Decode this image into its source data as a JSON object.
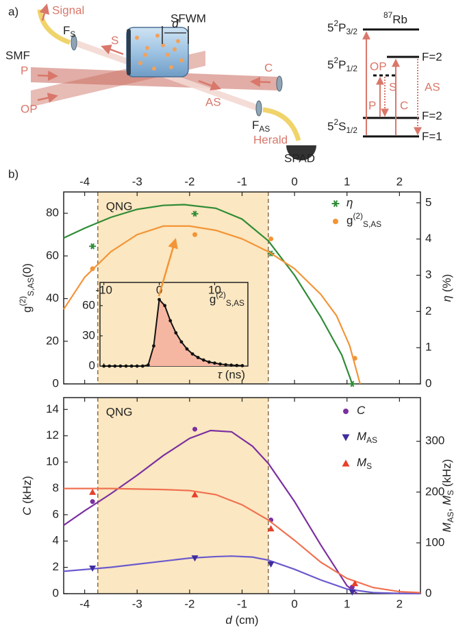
{
  "diagram": {
    "panel_a": "a)",
    "panel_b": "b)",
    "title": "SFWM",
    "signal": "Signal",
    "smf": "SMF",
    "f_s": [
      {
        "t": "F"
      },
      {
        "t": "S",
        "s": "sub"
      }
    ],
    "beam_s": "S",
    "beam_p": "P",
    "beam_c": "C",
    "beam_op": "OP",
    "beam_as": "AS",
    "cell_d": [
      {
        "t": "d",
        "i": true
      }
    ],
    "f_as": [
      {
        "t": "F"
      },
      {
        "t": "AS",
        "s": "sub"
      }
    ],
    "herald": "Herald",
    "spad": "SPAD",
    "atom": [
      {
        "t": "87",
        "s": "sup"
      },
      {
        "t": "Rb"
      }
    ],
    "level_p32": [
      {
        "t": "5"
      },
      {
        "t": "2",
        "s": "sup"
      },
      {
        "t": "P"
      },
      {
        "t": "3/2",
        "s": "sub"
      }
    ],
    "level_p12": [
      {
        "t": "5"
      },
      {
        "t": "2",
        "s": "sup"
      },
      {
        "t": "P"
      },
      {
        "t": "1/2",
        "s": "sub"
      }
    ],
    "level_s12": [
      {
        "t": "5"
      },
      {
        "t": "2",
        "s": "sup"
      },
      {
        "t": "S"
      },
      {
        "t": "1/2",
        "s": "sub"
      }
    ],
    "hf_p": "F=2",
    "hf_s2": "F=2",
    "hf_s1": "F=1",
    "tr_op": "OP",
    "tr_s": "S",
    "tr_p": "P",
    "tr_c": "C",
    "tr_as": "AS"
  },
  "chart_data": [
    {
      "type": "line",
      "xlim": [
        -4.4,
        2.4
      ],
      "xticks": [
        -4,
        -3,
        -2,
        -1,
        0,
        1,
        2
      ],
      "xtick_labels": "top",
      "ylim": [
        0,
        90
      ],
      "yticks": [
        0,
        20,
        40,
        60,
        80
      ],
      "y2lim": [
        0,
        5.3
      ],
      "y2ticks": [
        0,
        1,
        2,
        3,
        4,
        5
      ],
      "ylabel": [
        {
          "t": "g"
        },
        {
          "t": "(2)",
          "s": "sup"
        },
        {
          "t": "S,AS",
          "s": "sub"
        },
        {
          "t": "(0)"
        }
      ],
      "y2label": [
        {
          "t": "η",
          "i": true
        },
        {
          "t": " (%)"
        }
      ],
      "region": [
        -3.75,
        -0.5
      ],
      "region_label": "QNG",
      "region_color": "#fbe7c1",
      "series": [
        {
          "color": "#2e8b36",
          "axis": "y2",
          "line": true,
          "x": [
            -4.4,
            -4,
            -3.5,
            -3,
            -2.5,
            -2.1,
            -1.5,
            -1,
            -0.5,
            0,
            0.5,
            0.9,
            1.1
          ],
          "values": [
            4.03,
            4.3,
            4.6,
            4.82,
            4.93,
            4.95,
            4.85,
            4.55,
            3.95,
            3.0,
            1.85,
            0.8,
            0.0
          ]
        },
        {
          "color": "#2e8b36",
          "axis": "y2",
          "marker": "star",
          "x": [
            -3.85,
            -1.9,
            -0.45,
            1.1
          ],
          "values": [
            3.8,
            4.7,
            3.6,
            0.0
          ]
        },
        {
          "color": "#f39436",
          "line": true,
          "x": [
            -4.4,
            -4,
            -3.5,
            -3,
            -2.5,
            -2,
            -1.5,
            -1,
            -0.5,
            0,
            0.5,
            0.8,
            1.05,
            1.25
          ],
          "values": [
            35,
            50,
            62,
            70,
            74,
            74,
            72,
            68,
            62,
            54,
            42,
            32,
            18,
            0
          ]
        },
        {
          "color": "#f39436",
          "marker": "circle",
          "x": [
            -3.85,
            -1.9,
            -0.45,
            1.15
          ],
          "values": [
            54,
            70,
            68,
            12
          ]
        }
      ],
      "legend": [
        {
          "marker": "star",
          "color": "#2e8b36",
          "label": [
            {
              "t": "η",
              "i": true
            }
          ]
        },
        {
          "marker": "circle",
          "color": "#f39436",
          "label": [
            {
              "t": "g"
            },
            {
              "t": "(2)",
              "s": "sup"
            },
            {
              "t": "S,AS",
              "s": "sub"
            }
          ]
        }
      ]
    },
    {
      "type": "area",
      "xlim": [
        -10.7,
        16
      ],
      "xticks": [
        -10,
        0,
        10
      ],
      "xtick_labels": "top",
      "ylim": [
        0,
        83
      ],
      "yticks": [
        0,
        30,
        60
      ],
      "title": [
        {
          "t": "g"
        },
        {
          "t": "(2)",
          "s": "sup"
        },
        {
          "t": "S,AS",
          "s": "sub"
        }
      ],
      "xlabel": [
        {
          "t": "τ",
          "i": true
        },
        {
          "t": " (ns)"
        }
      ],
      "series": [
        {
          "color": "#111111",
          "fill": "#f6b7a2",
          "line": true,
          "marker": "dot",
          "x": [
            -10,
            -9,
            -8,
            -7,
            -6,
            -5,
            -4,
            -3,
            -2,
            -1,
            0,
            1,
            2,
            3,
            4,
            5,
            6,
            7,
            8,
            9,
            10,
            11,
            12,
            13,
            14,
            15
          ],
          "values": [
            0,
            0,
            0,
            0,
            0,
            0,
            0,
            0,
            1,
            20,
            66,
            60,
            45,
            33,
            24,
            17,
            12,
            8.5,
            6,
            4,
            3,
            2,
            1.3,
            0.9,
            0.6,
            0.4
          ]
        }
      ]
    },
    {
      "type": "line",
      "xlim": [
        -4.4,
        2.4
      ],
      "xticks": [
        -4,
        -3,
        -2,
        -1,
        0,
        1,
        2
      ],
      "xtick_labels": "bottom",
      "xlabel": [
        {
          "t": "d",
          "i": true
        },
        {
          "t": " (cm)"
        }
      ],
      "ylim": [
        0,
        14.9
      ],
      "yticks": [
        0,
        2,
        4,
        6,
        8,
        10,
        12,
        14
      ],
      "y2lim": [
        0,
        386
      ],
      "y2ticks": [
        0,
        100,
        200,
        300
      ],
      "ylabel": [
        {
          "t": "C",
          "i": true
        },
        {
          "t": " (kHz)"
        }
      ],
      "y2label": [
        {
          "t": "M",
          "i": true
        },
        {
          "t": "AS",
          "s": "sub"
        },
        {
          "t": ", "
        },
        {
          "t": "M",
          "i": true
        },
        {
          "t": "S",
          "s": "sub"
        },
        {
          "t": " (kHz)"
        }
      ],
      "region": [
        -3.75,
        -0.5
      ],
      "region_label": "QNG",
      "region_color": "#fbe7c1",
      "series": [
        {
          "color": "#7b2fa0",
          "line": true,
          "x": [
            -4.4,
            -4,
            -3.5,
            -3,
            -2.5,
            -2,
            -1.6,
            -1.2,
            -0.8,
            -0.5,
            0,
            0.5,
            1,
            1.2
          ],
          "values": [
            5.2,
            6.3,
            7.6,
            9,
            10.5,
            11.8,
            12.4,
            12.3,
            11.2,
            9.9,
            7,
            3.7,
            0.6,
            0
          ]
        },
        {
          "color": "#7b2fa0",
          "marker": "circle",
          "x": [
            -3.85,
            -1.9,
            -0.45,
            1.1
          ],
          "values": [
            7,
            12.5,
            5.6,
            0.5
          ]
        },
        {
          "color": "#6a5acd",
          "axis": "y2",
          "line": true,
          "x": [
            -4.4,
            -3.5,
            -3,
            -2.5,
            -2,
            -1.5,
            -1.2,
            -0.8,
            -0.5,
            0,
            0.5,
            1,
            1.5,
            2,
            2.4
          ],
          "values": [
            44,
            52,
            58,
            64,
            70,
            73,
            74,
            72,
            66,
            48,
            27,
            9,
            2,
            0.5,
            0.2
          ]
        },
        {
          "color": "#3e2d9e",
          "axis": "y2",
          "marker": "tri-down",
          "x": [
            -3.85,
            -1.9,
            -0.45,
            1.1
          ],
          "values": [
            50,
            70,
            58,
            3
          ]
        },
        {
          "color": "#f07050",
          "axis": "y2",
          "line": true,
          "x": [
            -4.4,
            -3.5,
            -3,
            -2.5,
            -2,
            -1.5,
            -1,
            -0.5,
            0,
            0.5,
            1,
            1.5,
            2,
            2.4
          ],
          "values": [
            207,
            207,
            206,
            205,
            203,
            195,
            175,
            145,
            105,
            62,
            30,
            12,
            4,
            2
          ]
        },
        {
          "color": "#e8402a",
          "axis": "y2",
          "marker": "tri-up",
          "x": [
            -3.85,
            -1.9,
            -0.45,
            1.15
          ],
          "values": [
            200,
            195,
            128,
            20
          ]
        }
      ],
      "legend": [
        {
          "marker": "circle",
          "color": "#7b2fa0",
          "label": [
            {
              "t": "C",
              "i": true
            }
          ]
        },
        {
          "marker": "tri-down",
          "color": "#3e2d9e",
          "label": [
            {
              "t": "M",
              "i": true
            },
            {
              "t": "AS",
              "s": "sub"
            }
          ]
        },
        {
          "marker": "tri-up",
          "color": "#e8402a",
          "label": [
            {
              "t": "M",
              "i": true
            },
            {
              "t": "S",
              "s": "sub"
            }
          ]
        }
      ]
    }
  ]
}
